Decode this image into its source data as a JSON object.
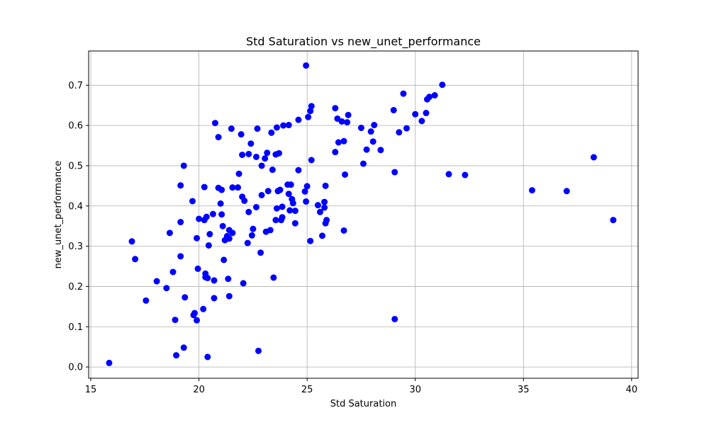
{
  "chart_data": {
    "type": "scatter",
    "title": "Std Saturation vs new_unet_performance",
    "xlabel": "Std Saturation",
    "ylabel": "new_unet_performance",
    "xlim": [
      14.9,
      40.3
    ],
    "ylim": [
      -0.028,
      0.785
    ],
    "xticks": [
      15,
      20,
      25,
      30,
      35,
      40
    ],
    "yticks": [
      0.0,
      0.1,
      0.2,
      0.3,
      0.4,
      0.5,
      0.6,
      0.7
    ],
    "xtick_labels": [
      "15",
      "20",
      "25",
      "30",
      "35",
      "40"
    ],
    "ytick_labels": [
      "0.0",
      "0.1",
      "0.2",
      "0.3",
      "0.4",
      "0.5",
      "0.6",
      "0.7"
    ],
    "grid": true,
    "marker_color": "#0000ff",
    "points": [
      [
        15.85,
        0.01
      ],
      [
        16.9,
        0.312
      ],
      [
        17.05,
        0.268
      ],
      [
        17.55,
        0.165
      ],
      [
        18.05,
        0.213
      ],
      [
        18.5,
        0.196
      ],
      [
        18.65,
        0.333
      ],
      [
        18.8,
        0.236
      ],
      [
        18.9,
        0.117
      ],
      [
        18.95,
        0.029
      ],
      [
        19.15,
        0.36
      ],
      [
        19.15,
        0.451
      ],
      [
        19.15,
        0.275
      ],
      [
        19.3,
        0.5
      ],
      [
        19.3,
        0.048
      ],
      [
        19.35,
        0.173
      ],
      [
        19.7,
        0.412
      ],
      [
        19.75,
        0.129
      ],
      [
        19.8,
        0.134
      ],
      [
        19.9,
        0.32
      ],
      [
        19.9,
        0.116
      ],
      [
        19.95,
        0.244
      ],
      [
        20.0,
        0.368
      ],
      [
        20.2,
        0.144
      ],
      [
        20.25,
        0.447
      ],
      [
        20.25,
        0.365
      ],
      [
        20.3,
        0.223
      ],
      [
        20.3,
        0.232
      ],
      [
        20.35,
        0.373
      ],
      [
        20.4,
        0.221
      ],
      [
        20.4,
        0.025
      ],
      [
        20.45,
        0.302
      ],
      [
        20.5,
        0.33
      ],
      [
        20.65,
        0.38
      ],
      [
        20.7,
        0.215
      ],
      [
        20.7,
        0.171
      ],
      [
        20.75,
        0.606
      ],
      [
        20.9,
        0.445
      ],
      [
        20.9,
        0.571
      ],
      [
        21.0,
        0.406
      ],
      [
        21.05,
        0.44
      ],
      [
        21.05,
        0.379
      ],
      [
        21.1,
        0.35
      ],
      [
        21.15,
        0.266
      ],
      [
        21.2,
        0.315
      ],
      [
        21.3,
        0.325
      ],
      [
        21.35,
        0.219
      ],
      [
        21.4,
        0.176
      ],
      [
        21.4,
        0.319
      ],
      [
        21.4,
        0.34
      ],
      [
        21.5,
        0.592
      ],
      [
        21.55,
        0.446
      ],
      [
        21.55,
        0.333
      ],
      [
        21.8,
        0.446
      ],
      [
        21.85,
        0.48
      ],
      [
        21.95,
        0.578
      ],
      [
        22.0,
        0.527
      ],
      [
        22.0,
        0.423
      ],
      [
        22.05,
        0.208
      ],
      [
        22.1,
        0.413
      ],
      [
        22.25,
        0.308
      ],
      [
        22.3,
        0.529
      ],
      [
        22.3,
        0.385
      ],
      [
        22.4,
        0.555
      ],
      [
        22.45,
        0.327
      ],
      [
        22.5,
        0.343
      ],
      [
        22.65,
        0.522
      ],
      [
        22.65,
        0.397
      ],
      [
        22.7,
        0.592
      ],
      [
        22.75,
        0.04
      ],
      [
        22.85,
        0.284
      ],
      [
        22.9,
        0.5
      ],
      [
        22.9,
        0.427
      ],
      [
        23.05,
        0.518
      ],
      [
        23.1,
        0.336
      ],
      [
        23.15,
        0.532
      ],
      [
        23.2,
        0.437
      ],
      [
        23.3,
        0.34
      ],
      [
        23.35,
        0.582
      ],
      [
        23.4,
        0.49
      ],
      [
        23.45,
        0.222
      ],
      [
        23.55,
        0.528
      ],
      [
        23.55,
        0.365
      ],
      [
        23.6,
        0.595
      ],
      [
        23.6,
        0.394
      ],
      [
        23.65,
        0.437
      ],
      [
        23.7,
        0.531
      ],
      [
        23.75,
        0.44
      ],
      [
        23.8,
        0.365
      ],
      [
        23.85,
        0.372
      ],
      [
        23.85,
        0.398
      ],
      [
        23.9,
        0.6
      ],
      [
        24.1,
        0.453
      ],
      [
        24.15,
        0.43
      ],
      [
        24.15,
        0.601
      ],
      [
        24.2,
        0.389
      ],
      [
        24.25,
        0.453
      ],
      [
        24.3,
        0.417
      ],
      [
        24.35,
        0.407
      ],
      [
        24.45,
        0.388
      ],
      [
        24.45,
        0.357
      ],
      [
        24.6,
        0.614
      ],
      [
        24.6,
        0.489
      ],
      [
        24.95,
        0.749
      ],
      [
        24.9,
        0.436
      ],
      [
        24.95,
        0.411
      ],
      [
        25.0,
        0.449
      ],
      [
        25.05,
        0.621
      ],
      [
        25.15,
        0.313
      ],
      [
        25.15,
        0.636
      ],
      [
        25.2,
        0.648
      ],
      [
        25.2,
        0.514
      ],
      [
        25.5,
        0.402
      ],
      [
        25.6,
        0.385
      ],
      [
        25.7,
        0.326
      ],
      [
        25.8,
        0.396
      ],
      [
        25.8,
        0.41
      ],
      [
        25.85,
        0.45
      ],
      [
        25.85,
        0.357
      ],
      [
        25.9,
        0.365
      ],
      [
        26.3,
        0.534
      ],
      [
        26.3,
        0.643
      ],
      [
        26.4,
        0.617
      ],
      [
        26.45,
        0.558
      ],
      [
        26.6,
        0.61
      ],
      [
        26.7,
        0.561
      ],
      [
        26.7,
        0.339
      ],
      [
        26.75,
        0.478
      ],
      [
        26.85,
        0.608
      ],
      [
        26.9,
        0.626
      ],
      [
        27.5,
        0.594
      ],
      [
        27.6,
        0.505
      ],
      [
        27.75,
        0.54
      ],
      [
        27.95,
        0.585
      ],
      [
        28.05,
        0.56
      ],
      [
        28.1,
        0.601
      ],
      [
        28.4,
        0.539
      ],
      [
        29.0,
        0.638
      ],
      [
        29.05,
        0.484
      ],
      [
        29.05,
        0.119
      ],
      [
        29.25,
        0.583
      ],
      [
        29.45,
        0.679
      ],
      [
        29.6,
        0.593
      ],
      [
        30.0,
        0.628
      ],
      [
        30.3,
        0.611
      ],
      [
        30.5,
        0.631
      ],
      [
        30.55,
        0.665
      ],
      [
        30.65,
        0.671
      ],
      [
        30.9,
        0.675
      ],
      [
        31.25,
        0.701
      ],
      [
        31.55,
        0.479
      ],
      [
        32.3,
        0.477
      ],
      [
        35.4,
        0.439
      ],
      [
        37.0,
        0.437
      ],
      [
        38.25,
        0.521
      ],
      [
        39.15,
        0.365
      ]
    ]
  }
}
